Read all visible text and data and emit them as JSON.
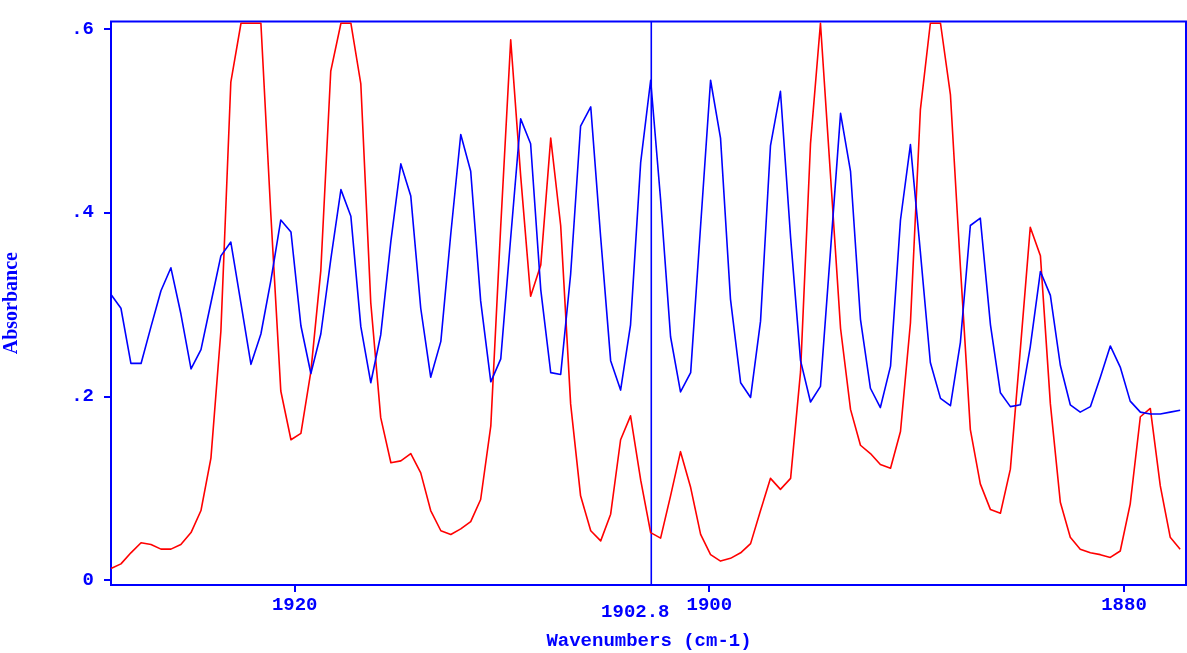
{
  "chart_data": {
    "type": "line",
    "xlabel": "Wavenumbers (cm-1)",
    "ylabel": "Absorbance",
    "xlim": [
      1928.86,
      1876.96
    ],
    "xticks": [
      1920,
      1900,
      1880
    ],
    "ylim": [
      -0.005,
      0.608
    ],
    "yticks": [
      0,
      {
        "value": 0.2,
        "label": ".2"
      },
      {
        "value": 0.4,
        "label": ".4"
      },
      {
        "value": 0.6,
        "label": ".6"
      }
    ],
    "grid": false,
    "ref_lines": [
      {
        "axis": "x",
        "value": 1902.8,
        "label": "1902.8",
        "color": "#0000ff"
      }
    ],
    "x": [
      1928.86,
      1928.38,
      1927.9,
      1927.41,
      1926.93,
      1926.45,
      1925.97,
      1925.49,
      1925.0,
      1924.52,
      1924.04,
      1923.56,
      1923.08,
      1922.59,
      1922.11,
      1921.63,
      1921.15,
      1920.67,
      1920.18,
      1919.7,
      1919.22,
      1918.74,
      1918.26,
      1917.77,
      1917.29,
      1916.81,
      1916.33,
      1915.85,
      1915.36,
      1914.88,
      1914.4,
      1913.92,
      1913.44,
      1912.95,
      1912.47,
      1911.99,
      1911.51,
      1911.03,
      1910.54,
      1910.06,
      1909.58,
      1909.1,
      1908.62,
      1908.13,
      1907.65,
      1907.17,
      1906.69,
      1906.21,
      1905.72,
      1905.24,
      1904.76,
      1904.28,
      1903.8,
      1903.31,
      1902.83,
      1902.35,
      1901.87,
      1901.39,
      1900.9,
      1900.42,
      1899.94,
      1899.46,
      1898.98,
      1898.49,
      1898.01,
      1897.53,
      1897.05,
      1896.57,
      1896.08,
      1895.6,
      1895.12,
      1894.64,
      1894.16,
      1893.67,
      1893.19,
      1892.71,
      1892.23,
      1891.75,
      1891.26,
      1890.78,
      1890.3,
      1889.82,
      1889.34,
      1888.85,
      1888.37,
      1887.89,
      1887.41,
      1886.93,
      1886.44,
      1885.96,
      1885.48,
      1885.0,
      1884.52,
      1884.03,
      1883.55,
      1883.07,
      1882.59,
      1882.11,
      1881.62,
      1881.14,
      1880.66,
      1880.18,
      1879.7,
      1879.21,
      1878.73,
      1878.25,
      1877.77,
      1877.29
    ],
    "series": [
      {
        "color": "#0000ff",
        "values": [
          0.311,
          0.296,
          0.236,
          0.236,
          0.276,
          0.315,
          0.34,
          0.29,
          0.23,
          0.251,
          0.302,
          0.353,
          0.368,
          0.301,
          0.235,
          0.268,
          0.326,
          0.392,
          0.379,
          0.277,
          0.225,
          0.268,
          0.349,
          0.425,
          0.396,
          0.276,
          0.215,
          0.267,
          0.369,
          0.453,
          0.418,
          0.296,
          0.221,
          0.26,
          0.377,
          0.485,
          0.445,
          0.304,
          0.216,
          0.241,
          0.373,
          0.502,
          0.475,
          0.316,
          0.226,
          0.224,
          0.333,
          0.494,
          0.515,
          0.373,
          0.239,
          0.207,
          0.278,
          0.455,
          0.544,
          0.414,
          0.265,
          0.205,
          0.226,
          0.386,
          0.544,
          0.481,
          0.306,
          0.215,
          0.199,
          0.282,
          0.473,
          0.532,
          0.373,
          0.239,
          0.194,
          0.211,
          0.357,
          0.508,
          0.445,
          0.284,
          0.209,
          0.188,
          0.233,
          0.392,
          0.474,
          0.357,
          0.237,
          0.198,
          0.19,
          0.259,
          0.386,
          0.394,
          0.278,
          0.204,
          0.189,
          0.191,
          0.254,
          0.336,
          0.31,
          0.234,
          0.191,
          0.183,
          0.189,
          0.221,
          0.255,
          0.232,
          0.195,
          0.183,
          0.181,
          0.181,
          0.183,
          0.185
        ]
      },
      {
        "color": "#ff0000",
        "values": [
          0.013,
          0.018,
          0.03,
          0.041,
          0.039,
          0.034,
          0.034,
          0.039,
          0.052,
          0.076,
          0.133,
          0.271,
          0.542,
          0.606,
          0.606,
          0.606,
          0.398,
          0.206,
          0.153,
          0.16,
          0.227,
          0.337,
          0.554,
          0.606,
          0.606,
          0.54,
          0.302,
          0.177,
          0.128,
          0.13,
          0.138,
          0.117,
          0.076,
          0.054,
          0.05,
          0.056,
          0.064,
          0.088,
          0.168,
          0.386,
          0.588,
          0.44,
          0.309,
          0.343,
          0.481,
          0.386,
          0.192,
          0.092,
          0.054,
          0.043,
          0.072,
          0.153,
          0.179,
          0.109,
          0.052,
          0.046,
          0.092,
          0.14,
          0.101,
          0.05,
          0.028,
          0.021,
          0.024,
          0.03,
          0.04,
          0.076,
          0.111,
          0.099,
          0.111,
          0.227,
          0.475,
          0.606,
          0.442,
          0.274,
          0.186,
          0.147,
          0.138,
          0.126,
          0.122,
          0.162,
          0.28,
          0.512,
          0.606,
          0.606,
          0.528,
          0.341,
          0.164,
          0.105,
          0.077,
          0.073,
          0.121,
          0.251,
          0.384,
          0.353,
          0.192,
          0.085,
          0.047,
          0.034,
          0.03,
          0.028,
          0.025,
          0.032,
          0.083,
          0.178,
          0.187,
          0.103,
          0.047,
          0.034
        ]
      }
    ]
  }
}
